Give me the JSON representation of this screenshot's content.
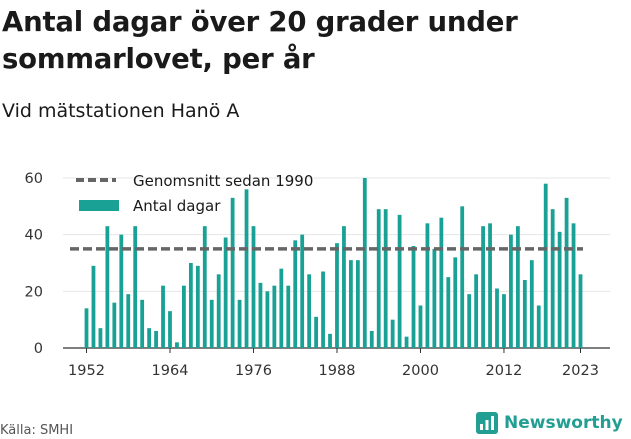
{
  "title": "Antal dagar över 20 grader under sommarlovet, per år",
  "subtitle": "Vid mätstationen Hanö A",
  "source": "Källa: SMHI",
  "brand": "Newsworthy",
  "colors": {
    "bar": "#1aa195",
    "average": "#666666",
    "grid": "#e6e6e6",
    "brand": "#239e93"
  },
  "chart_data": {
    "type": "bar",
    "title": "Antal dagar över 20 grader under sommarlovet, per år",
    "subtitle": "Vid mätstationen Hanö A",
    "xlabel": "",
    "ylabel": "",
    "ylim": [
      0,
      60
    ],
    "yticks": [
      0,
      20,
      40,
      60
    ],
    "xticks": [
      1952,
      1964,
      1976,
      1988,
      2000,
      2012,
      2023
    ],
    "grid": true,
    "legend_position": "top-left",
    "categories": [
      1952,
      1953,
      1954,
      1955,
      1956,
      1957,
      1958,
      1959,
      1960,
      1961,
      1962,
      1963,
      1964,
      1965,
      1966,
      1967,
      1968,
      1969,
      1970,
      1971,
      1972,
      1973,
      1974,
      1975,
      1976,
      1977,
      1978,
      1979,
      1980,
      1981,
      1982,
      1983,
      1984,
      1985,
      1986,
      1987,
      1988,
      1989,
      1990,
      1991,
      1992,
      1993,
      1994,
      1995,
      1996,
      1997,
      1998,
      1999,
      2000,
      2001,
      2002,
      2003,
      2004,
      2005,
      2006,
      2007,
      2008,
      2009,
      2010,
      2011,
      2012,
      2013,
      2014,
      2015,
      2016,
      2017,
      2018,
      2019,
      2020,
      2021,
      2022,
      2023
    ],
    "series": [
      {
        "name": "Antal dagar",
        "type": "bar",
        "values": [
          14,
          29,
          7,
          43,
          16,
          40,
          19,
          43,
          17,
          7,
          6,
          22,
          13,
          2,
          22,
          30,
          29,
          43,
          17,
          26,
          39,
          53,
          17,
          56,
          43,
          23,
          20,
          22,
          28,
          22,
          38,
          40,
          26,
          11,
          27,
          5,
          37,
          43,
          31,
          31,
          60,
          6,
          49,
          49,
          10,
          47,
          4,
          36,
          15,
          44,
          35,
          46,
          25,
          32,
          50,
          19,
          26,
          43,
          44,
          21,
          19,
          40,
          43,
          24,
          31,
          15,
          58,
          49,
          41,
          53,
          44,
          26
        ]
      },
      {
        "name": "Genomsnitt sedan 1990",
        "type": "line",
        "value": 35
      }
    ]
  }
}
